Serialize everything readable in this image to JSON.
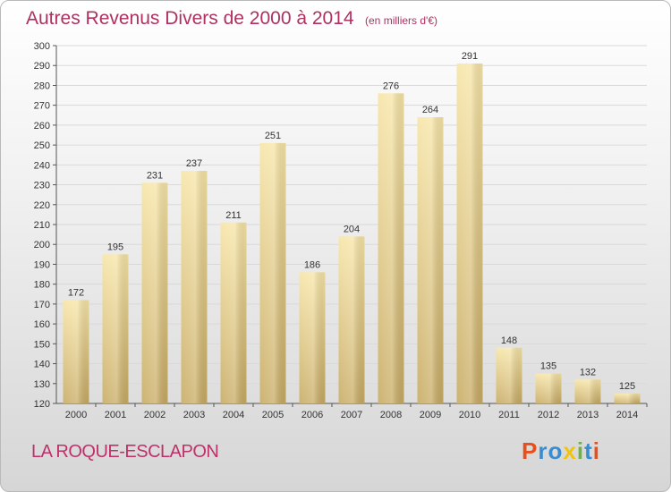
{
  "header": {
    "title": "Autres Revenus Divers de 2000 à 2014",
    "subtitle": "(en milliers d'€)"
  },
  "location": "LA ROQUE-ESCLAPON",
  "logo": {
    "text": "Proxiti",
    "letter_colors": [
      "#e94e1b",
      "#3a8ccf",
      "#3a8ccf",
      "#f1c40f",
      "#6cb33f",
      "#3a8ccf",
      "#e94e1b"
    ]
  },
  "colors": {
    "title": "#b03060",
    "bar_light": "#f7e5a6",
    "bar_dark": "#c8ab63",
    "grid": "#d9d9d9"
  },
  "chart_data": {
    "type": "bar",
    "categories": [
      "2000",
      "2001",
      "2002",
      "2003",
      "2004",
      "2005",
      "2006",
      "2007",
      "2008",
      "2009",
      "2010",
      "2011",
      "2012",
      "2013",
      "2014"
    ],
    "values": [
      172,
      195,
      231,
      237,
      211,
      251,
      186,
      204,
      276,
      264,
      291,
      148,
      135,
      132,
      125
    ],
    "ylim": [
      120,
      300
    ],
    "yticks": [
      120,
      130,
      140,
      150,
      160,
      170,
      180,
      190,
      200,
      210,
      220,
      230,
      240,
      250,
      260,
      270,
      280,
      290,
      300
    ],
    "grid": true,
    "data_labels": true
  }
}
